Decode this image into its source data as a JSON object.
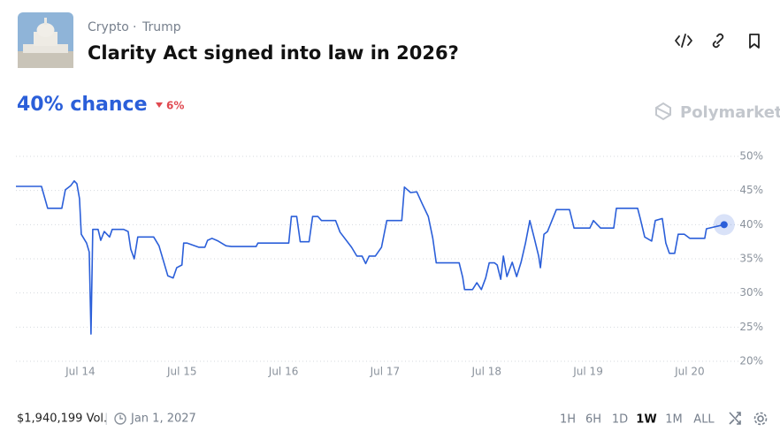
{
  "header": {
    "categories": [
      "Crypto",
      "Trump"
    ],
    "title": "Clarity Act signed into law in 2026?"
  },
  "summary": {
    "chance": "40% chance",
    "change": "6%"
  },
  "brand": "Polymarket",
  "chart_data": {
    "type": "line",
    "x": [
      13.365,
      13.617,
      13.678,
      13.817,
      13.852,
      13.904,
      13.939,
      13.965,
      13.991,
      14.009,
      14.061,
      14.087,
      14.104,
      14.122,
      14.174,
      14.2,
      14.235,
      14.287,
      14.313,
      14.426,
      14.47,
      14.496,
      14.53,
      14.565,
      14.722,
      14.774,
      14.861,
      14.913,
      14.948,
      15.0,
      15.017,
      15.052,
      15.165,
      15.226,
      15.252,
      15.296,
      15.357,
      15.435,
      15.487,
      15.73,
      15.748,
      16.052,
      16.078,
      16.13,
      16.165,
      16.252,
      16.287,
      16.339,
      16.374,
      16.513,
      16.557,
      16.67,
      16.722,
      16.774,
      16.809,
      16.843,
      16.904,
      16.965,
      17.017,
      17.165,
      17.191,
      17.252,
      17.313,
      17.365,
      17.426,
      17.47,
      17.504,
      17.73,
      17.765,
      17.783,
      17.861,
      17.904,
      17.948,
      17.991,
      18.026,
      18.078,
      18.104,
      18.139,
      18.165,
      18.2,
      18.252,
      18.296,
      18.339,
      18.383,
      18.426,
      18.47,
      18.513,
      18.53,
      18.565,
      18.6,
      18.643,
      18.687,
      18.817,
      18.861,
      19.017,
      19.052,
      19.122,
      19.252,
      19.278,
      19.487,
      19.513,
      19.557,
      19.626,
      19.661,
      19.73,
      19.765,
      19.8,
      19.852,
      19.887,
      19.948,
      20.0,
      20.148,
      20.165,
      20.339
    ],
    "series": [
      {
        "color": "#2b5fd9",
        "values": [
          45.6,
          45.6,
          42.4,
          42.4,
          45.1,
          45.7,
          46.4,
          46.0,
          43.8,
          38.6,
          37.3,
          36.0,
          24.0,
          39.3,
          39.3,
          37.7,
          39.0,
          38.2,
          39.3,
          39.3,
          39.0,
          36.4,
          35.0,
          38.2,
          38.2,
          36.9,
          32.5,
          32.2,
          33.7,
          34.1,
          37.3,
          37.3,
          36.7,
          36.7,
          37.7,
          38.0,
          37.6,
          36.9,
          36.8,
          36.8,
          37.3,
          37.3,
          41.2,
          41.2,
          37.5,
          37.5,
          41.2,
          41.2,
          40.6,
          40.6,
          38.9,
          36.7,
          35.4,
          35.4,
          34.3,
          35.4,
          35.4,
          36.7,
          40.6,
          40.6,
          45.5,
          44.7,
          44.8,
          43.1,
          41.2,
          38.0,
          34.4,
          34.4,
          32.3,
          30.5,
          30.5,
          31.5,
          30.5,
          32.2,
          34.4,
          34.4,
          34.1,
          32.0,
          35.4,
          32.4,
          34.5,
          32.4,
          34.5,
          37.3,
          40.6,
          38.0,
          35.4,
          33.7,
          38.6,
          39.0,
          40.6,
          42.2,
          42.2,
          39.5,
          39.5,
          40.6,
          39.5,
          39.5,
          42.4,
          42.4,
          40.9,
          38.2,
          37.6,
          40.6,
          40.9,
          37.3,
          35.8,
          35.8,
          38.6,
          38.6,
          38.0,
          38.0,
          39.4,
          40.0
        ]
      }
    ],
    "xlim": [
      13.365,
      20.48
    ],
    "xticks": [
      {
        "value": 14,
        "label": "Jul 14"
      },
      {
        "value": 15,
        "label": "Jul 15"
      },
      {
        "value": 16,
        "label": "Jul 16"
      },
      {
        "value": 17,
        "label": "Jul 17"
      },
      {
        "value": 18,
        "label": "Jul 18"
      },
      {
        "value": 19,
        "label": "Jul 19"
      },
      {
        "value": 20,
        "label": "Jul 20"
      }
    ],
    "ylim": [
      20,
      50
    ],
    "yticks": [
      {
        "value": 20,
        "label": "20%"
      },
      {
        "value": 25,
        "label": "25%"
      },
      {
        "value": 30,
        "label": "30%"
      },
      {
        "value": 35,
        "label": "35%"
      },
      {
        "value": 40,
        "label": "40%"
      },
      {
        "value": 45,
        "label": "45%"
      },
      {
        "value": 50,
        "label": "50%"
      }
    ],
    "grid": true
  },
  "footer": {
    "volume": "$1,940,199 Vol.",
    "end_date": "Jan 1, 2027",
    "ranges": [
      "1H",
      "6H",
      "1D",
      "1W",
      "1M",
      "ALL"
    ],
    "active_range": 3
  }
}
